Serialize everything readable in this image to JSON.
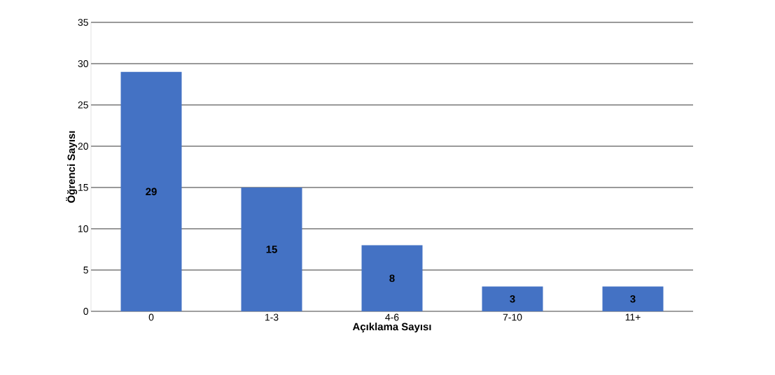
{
  "chart_data": {
    "type": "bar",
    "xlabel": "Açıklama Sayısı",
    "ylabel": "Öğrenci Sayısı",
    "categories": [
      "0",
      "1-3",
      "4-6",
      "7-10",
      "11+"
    ],
    "values": [
      29,
      15,
      8,
      3,
      3
    ],
    "color": "#4472c4",
    "ylim": [
      0,
      35
    ],
    "yticks": [
      0,
      5,
      10,
      15,
      20,
      25,
      30,
      35
    ],
    "grid": "y",
    "data_labels": true
  }
}
